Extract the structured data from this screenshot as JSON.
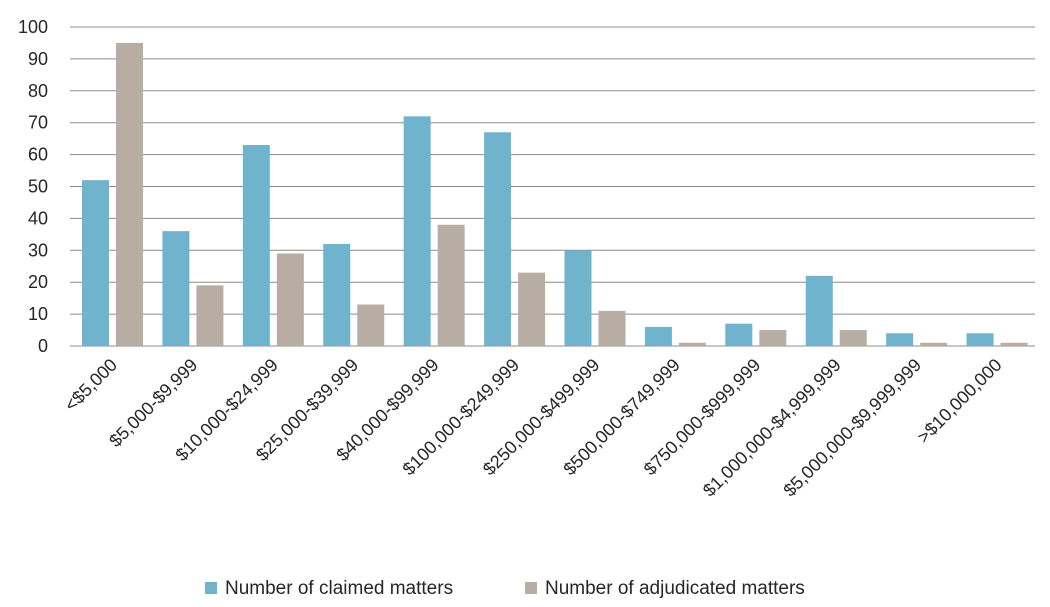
{
  "chart_data": {
    "type": "bar",
    "title": "",
    "xlabel": "",
    "ylabel": "",
    "categories": [
      "<$5,000",
      "$5,000-$9,999",
      "$10,000-$24,999",
      "$25,000-$39,999",
      "$40,000-$99,999",
      "$100,000-$249,999",
      "$250,000-$499,999",
      "$500,000-$749,999",
      "$750,000-$999,999",
      "$1,000,000-$4,999,999",
      "$5,000,000-$9,999,999",
      ">$10,000,000"
    ],
    "series": [
      {
        "name": "Number of claimed matters",
        "color": "#6fb3cc",
        "values": [
          52,
          36,
          63,
          32,
          72,
          67,
          30,
          6,
          7,
          22,
          4,
          4
        ]
      },
      {
        "name": "Number of adjudicated matters",
        "color": "#b8ada3",
        "values": [
          95,
          19,
          29,
          13,
          38,
          23,
          11,
          1,
          5,
          5,
          1,
          1
        ]
      }
    ],
    "ylim": [
      0,
      100
    ],
    "yticks": [
      0,
      10,
      20,
      30,
      40,
      50,
      60,
      70,
      80,
      90,
      100
    ],
    "grid": true,
    "legend_position": "bottom"
  }
}
